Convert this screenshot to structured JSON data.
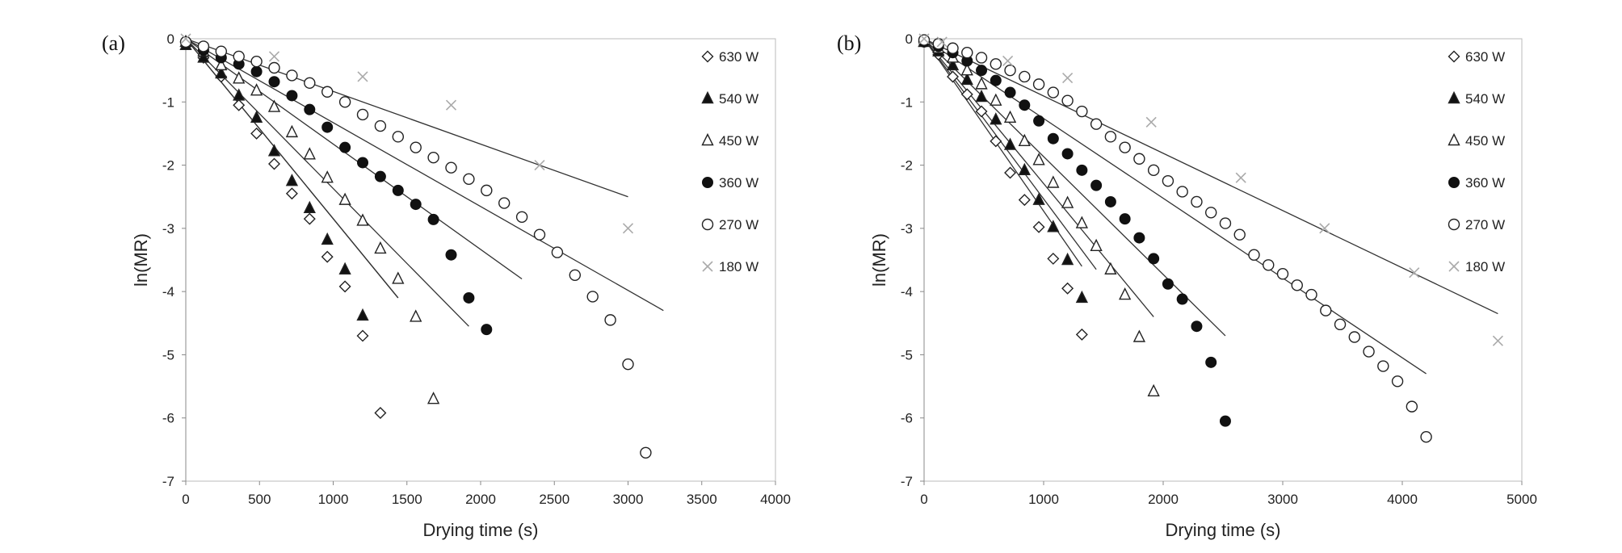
{
  "chart_data": [
    {
      "type": "scatter",
      "panel_label": "(a)",
      "xlabel": "Drying time (s)",
      "ylabel": "ln(MR)",
      "xlim": [
        0,
        4000
      ],
      "ylim": [
        -7,
        0
      ],
      "xticks": [
        0,
        500,
        1000,
        1500,
        2000,
        2500,
        3000,
        3500,
        4000
      ],
      "yticks": [
        0,
        -1,
        -2,
        -3,
        -4,
        -5,
        -6,
        -7
      ],
      "grid": false,
      "legend_position": "right",
      "series": [
        {
          "name": "630 W",
          "marker": "diamond-open",
          "x": [
            0,
            120,
            240,
            360,
            480,
            600,
            720,
            840,
            960,
            1080,
            1200,
            1320
          ],
          "y": [
            -0.05,
            -0.3,
            -0.6,
            -1.05,
            -1.5,
            -1.98,
            -2.45,
            -2.85,
            -3.45,
            -3.92,
            -4.7,
            -5.92
          ],
          "fit": {
            "x": [
              0,
              1440
            ],
            "y": [
              0,
              -4.1
            ]
          }
        },
        {
          "name": "540 W",
          "marker": "triangle-filled",
          "x": [
            0,
            120,
            240,
            360,
            480,
            600,
            720,
            840,
            960,
            1080,
            1200
          ],
          "y": [
            -0.1,
            -0.3,
            -0.55,
            -0.9,
            -1.25,
            -1.78,
            -2.25,
            -2.68,
            -3.18,
            -3.65,
            -4.38
          ],
          "fit": {
            "x": [
              0,
              1440
            ],
            "y": [
              0,
              -4.1
            ]
          }
        },
        {
          "name": "450 W",
          "marker": "triangle-open",
          "x": [
            0,
            120,
            240,
            360,
            480,
            600,
            720,
            840,
            960,
            1080,
            1200,
            1320,
            1440,
            1560,
            1680
          ],
          "y": [
            -0.05,
            -0.2,
            -0.42,
            -0.63,
            -0.82,
            -1.08,
            -1.48,
            -1.83,
            -2.2,
            -2.55,
            -2.88,
            -3.32,
            -3.8,
            -4.4,
            -5.7
          ],
          "fit": {
            "x": [
              0,
              1920
            ],
            "y": [
              0,
              -4.55
            ]
          }
        },
        {
          "name": "360 W",
          "marker": "circle-filled",
          "x": [
            0,
            120,
            240,
            360,
            480,
            600,
            720,
            840,
            960,
            1080,
            1200,
            1320,
            1440,
            1560,
            1680,
            1800,
            1920,
            2040
          ],
          "y": [
            -0.05,
            -0.18,
            -0.3,
            -0.4,
            -0.52,
            -0.68,
            -0.9,
            -1.12,
            -1.4,
            -1.72,
            -1.96,
            -2.18,
            -2.4,
            -2.62,
            -2.86,
            -3.42,
            -4.1,
            -4.6
          ],
          "fit": {
            "x": [
              0,
              2280
            ],
            "y": [
              0,
              -3.8
            ]
          }
        },
        {
          "name": "270 W",
          "marker": "circle-open",
          "x": [
            0,
            120,
            240,
            360,
            480,
            600,
            720,
            840,
            960,
            1080,
            1200,
            1320,
            1440,
            1560,
            1680,
            1800,
            1920,
            2040,
            2160,
            2280,
            2400,
            2520,
            2640,
            2760,
            2880,
            3000,
            3120
          ],
          "y": [
            -0.05,
            -0.12,
            -0.2,
            -0.28,
            -0.36,
            -0.46,
            -0.58,
            -0.7,
            -0.84,
            -1.0,
            -1.2,
            -1.38,
            -1.55,
            -1.72,
            -1.88,
            -2.04,
            -2.22,
            -2.4,
            -2.6,
            -2.82,
            -3.1,
            -3.38,
            -3.74,
            -4.08,
            -4.45,
            -5.15,
            -6.55
          ],
          "fit": {
            "x": [
              0,
              3240
            ],
            "y": [
              0,
              -4.3
            ]
          }
        },
        {
          "name": "180 W",
          "marker": "cross",
          "x": [
            0,
            600,
            1200,
            1800,
            2400,
            3000
          ],
          "y": [
            0,
            -0.28,
            -0.6,
            -1.05,
            -2.0,
            -3.0
          ],
          "fit": {
            "x": [
              0,
              3000
            ],
            "y": [
              0,
              -2.5
            ]
          }
        }
      ]
    },
    {
      "type": "scatter",
      "panel_label": "(b)",
      "xlabel": "Drying time (s)",
      "ylabel": "ln(MR)",
      "xlim": [
        0,
        5000
      ],
      "ylim": [
        -7,
        0
      ],
      "xticks": [
        0,
        1000,
        2000,
        3000,
        4000,
        5000
      ],
      "yticks": [
        0,
        -1,
        -2,
        -3,
        -4,
        -5,
        -6,
        -7
      ],
      "grid": false,
      "legend_position": "right",
      "series": [
        {
          "name": "630 W",
          "marker": "diamond-open",
          "x": [
            0,
            120,
            240,
            360,
            480,
            600,
            720,
            840,
            960,
            1080,
            1200,
            1320
          ],
          "y": [
            -0.05,
            -0.25,
            -0.6,
            -0.88,
            -1.15,
            -1.62,
            -2.12,
            -2.55,
            -2.98,
            -3.48,
            -3.95,
            -4.68
          ],
          "fit": {
            "x": [
              0,
              1320
            ],
            "y": [
              0,
              -3.6
            ]
          }
        },
        {
          "name": "540 W",
          "marker": "triangle-filled",
          "x": [
            0,
            120,
            240,
            360,
            480,
            600,
            720,
            840,
            960,
            1080,
            1200,
            1320
          ],
          "y": [
            -0.05,
            -0.2,
            -0.42,
            -0.65,
            -0.92,
            -1.28,
            -1.68,
            -2.08,
            -2.55,
            -2.98,
            -3.5,
            -4.1
          ],
          "fit": {
            "x": [
              0,
              1440
            ],
            "y": [
              0,
              -3.65
            ]
          }
        },
        {
          "name": "450 W",
          "marker": "triangle-open",
          "x": [
            0,
            120,
            240,
            360,
            480,
            600,
            720,
            840,
            960,
            1080,
            1200,
            1320,
            1440,
            1560,
            1680,
            1800,
            1920
          ],
          "y": [
            -0.05,
            -0.15,
            -0.3,
            -0.5,
            -0.72,
            -0.98,
            -1.25,
            -1.62,
            -1.92,
            -2.28,
            -2.6,
            -2.92,
            -3.28,
            -3.65,
            -4.05,
            -4.72,
            -5.58
          ],
          "fit": {
            "x": [
              0,
              1920
            ],
            "y": [
              0,
              -4.4
            ]
          }
        },
        {
          "name": "360 W",
          "marker": "circle-filled",
          "x": [
            0,
            120,
            240,
            360,
            480,
            600,
            720,
            840,
            960,
            1080,
            1200,
            1320,
            1440,
            1560,
            1680,
            1800,
            1920,
            2040,
            2160,
            2280,
            2400,
            2520
          ],
          "y": [
            -0.05,
            -0.12,
            -0.22,
            -0.35,
            -0.5,
            -0.66,
            -0.85,
            -1.05,
            -1.3,
            -1.58,
            -1.82,
            -2.08,
            -2.32,
            -2.58,
            -2.85,
            -3.15,
            -3.48,
            -3.88,
            -4.12,
            -4.55,
            -5.12,
            -6.05
          ],
          "fit": {
            "x": [
              0,
              2520
            ],
            "y": [
              0,
              -4.7
            ]
          }
        },
        {
          "name": "270 W",
          "marker": "circle-open",
          "x": [
            0,
            120,
            240,
            360,
            480,
            600,
            720,
            840,
            960,
            1080,
            1200,
            1320,
            1440,
            1560,
            1680,
            1800,
            1920,
            2040,
            2160,
            2280,
            2400,
            2520,
            2640,
            2760,
            2880,
            3000,
            3120,
            3240,
            3360,
            3480,
            3600,
            3720,
            3840,
            3960,
            4080,
            4200
          ],
          "y": [
            -0.02,
            -0.08,
            -0.15,
            -0.22,
            -0.3,
            -0.4,
            -0.5,
            -0.6,
            -0.72,
            -0.85,
            -0.98,
            -1.15,
            -1.35,
            -1.55,
            -1.72,
            -1.9,
            -2.08,
            -2.25,
            -2.42,
            -2.58,
            -2.75,
            -2.92,
            -3.1,
            -3.42,
            -3.58,
            -3.72,
            -3.9,
            -4.05,
            -4.3,
            -4.52,
            -4.72,
            -4.95,
            -5.18,
            -5.42,
            -5.82,
            -6.3
          ],
          "fit": {
            "x": [
              0,
              4200
            ],
            "y": [
              0,
              -5.3
            ]
          }
        },
        {
          "name": "180 W",
          "marker": "cross",
          "x": [
            0,
            150,
            700,
            1200,
            1900,
            2650,
            3350,
            4100,
            4800
          ],
          "y": [
            0,
            -0.05,
            -0.35,
            -0.62,
            -1.32,
            -2.2,
            -3.0,
            -3.7,
            -4.78
          ],
          "fit": {
            "x": [
              0,
              4800
            ],
            "y": [
              0,
              -4.35
            ]
          }
        }
      ]
    }
  ]
}
